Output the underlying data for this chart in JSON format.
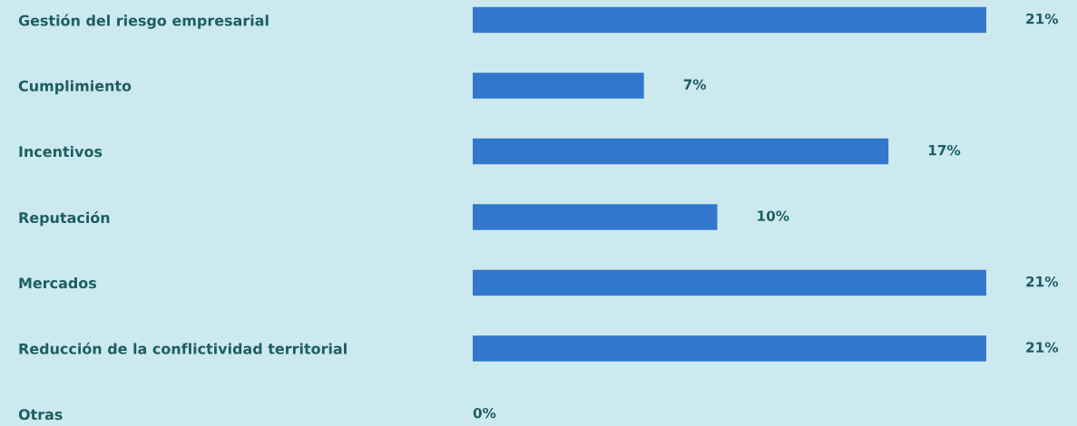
{
  "chart_data": {
    "type": "bar",
    "orientation": "horizontal",
    "categories": [
      "Gestión del riesgo empresarial",
      "Cumplimiento",
      "Incentivos",
      "Reputación",
      "Mercados",
      "Reducción de la conflictividad territorial",
      "Otras"
    ],
    "values": [
      21,
      7,
      17,
      10,
      21,
      21,
      0
    ],
    "value_labels": [
      "21%",
      "7%",
      "17%",
      "10%",
      "21%",
      "21%",
      "0%"
    ],
    "color": "#3178cc"
  }
}
